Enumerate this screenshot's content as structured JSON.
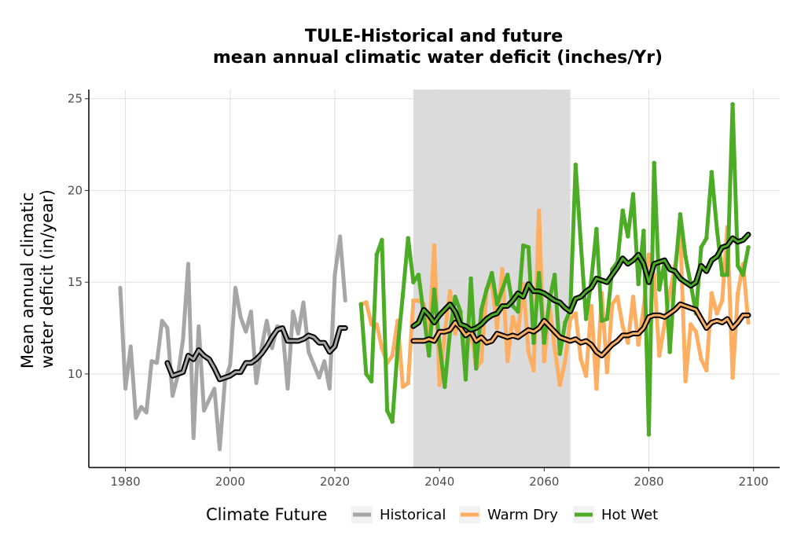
{
  "chart_data": {
    "type": "line",
    "title_lines": [
      "TULE-Historical and future",
      "mean annual climatic water deficit (inches/Yr)"
    ],
    "xlabel": "",
    "ylabel_lines": [
      "Mean annual climatic",
      "water deficit (in/year)"
    ],
    "xlim": [
      1973,
      2105
    ],
    "ylim": [
      4.9,
      25.5
    ],
    "x_ticks": [
      1980,
      2000,
      2020,
      2040,
      2060,
      2080,
      2100
    ],
    "y_ticks": [
      10,
      15,
      20,
      25
    ],
    "grid": true,
    "shaded_period": [
      2035,
      2065
    ],
    "legend": {
      "title": "Climate Future",
      "position": "bottom",
      "entries": [
        {
          "label": "Historical",
          "color": "#a6a6a6"
        },
        {
          "label": "Warm Dry",
          "color": "#fdae61"
        },
        {
          "label": "Hot Wet",
          "color": "#4dac26"
        }
      ]
    },
    "series": [
      {
        "name": "Historical",
        "color": "#a6a6a6",
        "x": [
          1979,
          1980,
          1981,
          1982,
          1983,
          1984,
          1985,
          1986,
          1987,
          1988,
          1989,
          1990,
          1991,
          1992,
          1993,
          1994,
          1995,
          1996,
          1997,
          1998,
          1999,
          2000,
          2001,
          2002,
          2003,
          2004,
          2005,
          2006,
          2007,
          2008,
          2009,
          2010,
          2011,
          2012,
          2013,
          2014,
          2015,
          2016,
          2017,
          2018,
          2019,
          2020,
          2021,
          2022
        ],
        "y": [
          14.7,
          9.2,
          11.5,
          7.6,
          8.2,
          7.9,
          10.7,
          10.6,
          12.9,
          12.5,
          8.8,
          9.9,
          11.9,
          16.0,
          6.5,
          12.6,
          8.0,
          8.6,
          9.2,
          5.9,
          9.6,
          10.5,
          14.7,
          13.1,
          12.3,
          13.4,
          9.5,
          11.4,
          12.9,
          11.4,
          12.6,
          12.5,
          9.2,
          13.4,
          12.2,
          13.9,
          11.2,
          10.5,
          9.8,
          10.7,
          9.2,
          15.4,
          17.5,
          14.0
        ]
      },
      {
        "name": "Warm Dry",
        "color": "#fdae61",
        "x": [
          2025,
          2026,
          2027,
          2028,
          2029,
          2030,
          2031,
          2032,
          2033,
          2034,
          2035,
          2036,
          2037,
          2038,
          2039,
          2040,
          2041,
          2042,
          2043,
          2044,
          2045,
          2046,
          2047,
          2048,
          2049,
          2050,
          2051,
          2052,
          2053,
          2054,
          2055,
          2056,
          2057,
          2058,
          2059,
          2060,
          2061,
          2062,
          2063,
          2064,
          2065,
          2066,
          2067,
          2068,
          2069,
          2070,
          2071,
          2072,
          2073,
          2074,
          2075,
          2076,
          2077,
          2078,
          2079,
          2080,
          2081,
          2082,
          2083,
          2084,
          2085,
          2086,
          2087,
          2088,
          2089,
          2090,
          2091,
          2092,
          2093,
          2094,
          2095,
          2096,
          2097,
          2098,
          2099
        ],
        "y": [
          13.8,
          13.9,
          12.7,
          12.7,
          11.4,
          10.6,
          11.0,
          12.9,
          9.3,
          9.5,
          14.0,
          14.0,
          13.8,
          12.0,
          17.0,
          9.4,
          12.2,
          14.5,
          12.2,
          13.3,
          10.7,
          12.6,
          10.3,
          10.7,
          14.6,
          15.0,
          12.5,
          15.7,
          10.7,
          13.1,
          12.2,
          14.9,
          11.2,
          10.2,
          18.9,
          10.7,
          13.7,
          11.4,
          9.4,
          10.7,
          13.0,
          13.3,
          10.8,
          9.9,
          13.7,
          9.2,
          14.4,
          10.1,
          13.8,
          14.2,
          12.6,
          11.7,
          14.2,
          11.6,
          13.6,
          16.5,
          15.4,
          11.0,
          12.7,
          14.4,
          15.9,
          17.7,
          9.6,
          12.7,
          12.3,
          10.8,
          10.2,
          14.4,
          13.3,
          14.0,
          18.0,
          9.8,
          14.4,
          16.0,
          12.8
        ]
      },
      {
        "name": "Hot Wet",
        "color": "#4dac26",
        "x": [
          2025,
          2026,
          2027,
          2028,
          2029,
          2030,
          2031,
          2032,
          2033,
          2034,
          2035,
          2036,
          2037,
          2038,
          2039,
          2040,
          2041,
          2042,
          2043,
          2044,
          2045,
          2046,
          2047,
          2048,
          2049,
          2050,
          2051,
          2052,
          2053,
          2054,
          2055,
          2056,
          2057,
          2058,
          2059,
          2060,
          2061,
          2062,
          2063,
          2064,
          2065,
          2066,
          2067,
          2068,
          2069,
          2070,
          2071,
          2072,
          2073,
          2074,
          2075,
          2076,
          2077,
          2078,
          2079,
          2080,
          2081,
          2082,
          2083,
          2084,
          2085,
          2086,
          2087,
          2088,
          2089,
          2090,
          2091,
          2092,
          2093,
          2094,
          2095,
          2096,
          2097,
          2098,
          2099
        ],
        "y": [
          13.8,
          10.0,
          9.6,
          16.5,
          17.3,
          8.0,
          7.4,
          11.4,
          14.3,
          17.4,
          15.0,
          15.4,
          13.2,
          11.0,
          14.6,
          11.6,
          9.3,
          12.3,
          14.2,
          13.4,
          9.7,
          15.2,
          10.3,
          13.5,
          14.6,
          15.5,
          13.8,
          14.6,
          15.4,
          13.7,
          13.4,
          17.0,
          16.9,
          11.7,
          15.5,
          11.7,
          14.0,
          15.4,
          11.1,
          12.8,
          13.5,
          21.4,
          17.1,
          13.0,
          15.1,
          17.9,
          12.9,
          13.0,
          15.7,
          16.1,
          18.9,
          17.5,
          19.8,
          14.9,
          17.8,
          6.7,
          21.5,
          14.6,
          16.1,
          11.2,
          15.5,
          18.7,
          16.4,
          14.9,
          13.3,
          16.9,
          17.4,
          21.0,
          17.9,
          15.4,
          15.4,
          24.7,
          15.9,
          15.4,
          16.9
        ]
      }
    ],
    "smoothed_series": [
      {
        "name": "Historical",
        "color": "#a6a6a6",
        "x": [
          1988,
          1989,
          1990,
          1991,
          1992,
          1993,
          1994,
          1995,
          1996,
          1997,
          1998,
          1999,
          2000,
          2001,
          2002,
          2003,
          2004,
          2005,
          2006,
          2007,
          2008,
          2009,
          2010,
          2011,
          2012,
          2013,
          2014,
          2015,
          2016,
          2017,
          2018,
          2019,
          2020,
          2021,
          2022
        ],
        "y": [
          10.6,
          9.9,
          10.0,
          10.1,
          11.0,
          10.8,
          11.3,
          11.0,
          10.8,
          10.3,
          9.7,
          9.8,
          9.9,
          10.1,
          10.1,
          10.6,
          10.6,
          10.8,
          11.1,
          11.5,
          12.0,
          12.4,
          12.5,
          11.8,
          11.8,
          11.8,
          11.9,
          12.1,
          12.0,
          11.7,
          11.7,
          11.2,
          11.5,
          12.5,
          12.5
        ]
      },
      {
        "name": "Warm Dry",
        "color": "#fdae61",
        "x": [
          2035,
          2036,
          2037,
          2038,
          2039,
          2040,
          2041,
          2042,
          2043,
          2044,
          2045,
          2046,
          2047,
          2048,
          2049,
          2050,
          2051,
          2052,
          2053,
          2054,
          2055,
          2056,
          2057,
          2058,
          2059,
          2060,
          2061,
          2062,
          2063,
          2064,
          2065,
          2066,
          2067,
          2068,
          2069,
          2070,
          2071,
          2072,
          2073,
          2074,
          2075,
          2076,
          2077,
          2078,
          2079,
          2080,
          2081,
          2082,
          2083,
          2084,
          2085,
          2086,
          2087,
          2088,
          2089,
          2090,
          2091,
          2092,
          2093,
          2094,
          2095,
          2096,
          2097,
          2098,
          2099
        ],
        "y": [
          11.8,
          11.8,
          11.8,
          11.9,
          11.8,
          12.3,
          12.3,
          12.4,
          12.8,
          12.5,
          12.1,
          12.3,
          11.8,
          12.0,
          11.7,
          11.8,
          12.2,
          12.1,
          12.0,
          12.1,
          12.0,
          12.2,
          12.4,
          12.3,
          12.5,
          12.9,
          12.6,
          12.3,
          12.0,
          11.9,
          11.8,
          11.9,
          11.7,
          11.8,
          11.6,
          11.2,
          11.0,
          11.3,
          11.6,
          11.8,
          12.1,
          12.1,
          12.2,
          12.2,
          12.5,
          13.1,
          13.2,
          13.2,
          13.1,
          13.3,
          13.5,
          13.8,
          13.7,
          13.6,
          13.5,
          13.0,
          12.5,
          12.8,
          12.9,
          12.8,
          13.0,
          12.5,
          12.8,
          13.2,
          13.2
        ]
      },
      {
        "name": "Hot Wet",
        "color": "#4dac26",
        "x": [
          2035,
          2036,
          2037,
          2038,
          2039,
          2040,
          2041,
          2042,
          2043,
          2044,
          2045,
          2046,
          2047,
          2048,
          2049,
          2050,
          2051,
          2052,
          2053,
          2054,
          2055,
          2056,
          2057,
          2058,
          2059,
          2060,
          2061,
          2062,
          2063,
          2064,
          2065,
          2066,
          2067,
          2068,
          2069,
          2070,
          2071,
          2072,
          2073,
          2074,
          2075,
          2076,
          2077,
          2078,
          2079,
          2080,
          2081,
          2082,
          2083,
          2084,
          2085,
          2086,
          2087,
          2088,
          2089,
          2090,
          2091,
          2092,
          2093,
          2094,
          2095,
          2096,
          2097,
          2098,
          2099
        ],
        "y": [
          12.6,
          12.8,
          13.5,
          13.2,
          12.8,
          13.2,
          13.5,
          13.8,
          13.4,
          12.7,
          12.6,
          12.4,
          12.5,
          12.7,
          13.0,
          13.2,
          13.3,
          13.7,
          13.7,
          14.0,
          14.4,
          14.2,
          14.9,
          14.5,
          14.5,
          14.4,
          14.2,
          14.0,
          13.9,
          13.6,
          13.4,
          14.1,
          14.2,
          14.5,
          14.7,
          15.2,
          15.1,
          15.0,
          15.4,
          15.8,
          16.3,
          16.0,
          16.2,
          16.5,
          16.0,
          15.0,
          16.0,
          16.1,
          16.2,
          15.7,
          15.6,
          15.2,
          15.0,
          14.8,
          15.0,
          15.9,
          15.6,
          16.2,
          16.4,
          16.9,
          17.0,
          17.4,
          17.2,
          17.3,
          17.6
        ]
      }
    ]
  }
}
